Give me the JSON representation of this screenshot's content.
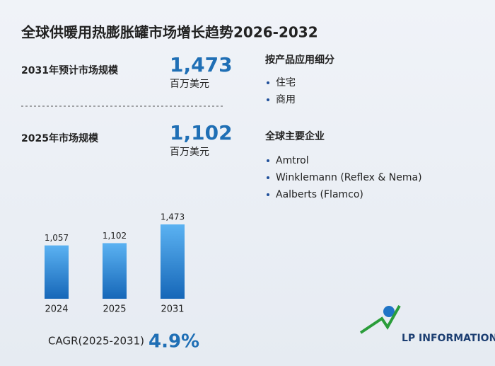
{
  "title": "全球供暖用热膨胀罐市场增长趋势2026-2032",
  "summary": [
    {
      "label": "2031年预计市场规模",
      "value": "1,473",
      "unit": "百万美元"
    },
    {
      "label": "2025年市场规模",
      "value": "1,102",
      "unit": "百万美元"
    }
  ],
  "segments": {
    "heading": "按产品应用细分",
    "items": [
      "住宅",
      "商用"
    ]
  },
  "companies": {
    "heading": "全球主要企业",
    "items": [
      "Amtrol",
      "Winklemann (Reflex & Nema)",
      "Aalberts (Flamco)"
    ]
  },
  "cagr": {
    "label": "CAGR(2025-2031)",
    "value": "4.9%"
  },
  "logo": {
    "text": "LP INFORMATION"
  },
  "chart_data": {
    "type": "bar",
    "categories": [
      "2024",
      "2025",
      "2031"
    ],
    "values": [
      1057,
      1102,
      1473
    ],
    "value_labels": [
      "1,057",
      "1,102",
      "1,473"
    ],
    "color": "#1f74c6"
  }
}
